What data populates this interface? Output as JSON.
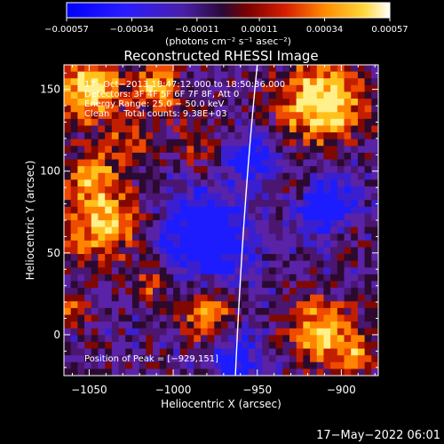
{
  "chart_data": {
    "type": "heatmap",
    "title": "Reconstructed RHESSI Image",
    "xlabel": "Heliocentric X (arcsec)",
    "ylabel": "Heliocentric Y (arcsec)",
    "xlim": [
      -1065,
      -878
    ],
    "ylim": [
      -25,
      165
    ],
    "xticks": [
      -1050,
      -1000,
      -950,
      -900
    ],
    "xtick_labels": [
      "−1050",
      "−1000",
      "−950",
      "−900"
    ],
    "yticks": [
      0,
      50,
      100,
      150
    ],
    "ytick_labels": [
      "0",
      "50",
      "100",
      "150"
    ],
    "colorbar": {
      "range": [
        -0.00057,
        0.00057
      ],
      "ticks": [
        -0.00057,
        -0.00034,
        -0.00011,
        0.00011,
        0.00034,
        0.00057
      ],
      "tick_labels": [
        "−0.00057",
        "−0.00034",
        "−0.00011",
        "0.00011",
        "0.00034",
        "0.00057"
      ],
      "units_label": "(photons cm⁻² s⁻¹ asec⁻²)"
    },
    "info_lines": [
      "17−Oct−2013 18:47:12.000 to 18:50:36.000",
      "Detectors: 3F 4F 5F 6F 7F 8F, Att 0",
      "Energy Range: 25.0 − 50.0 keV",
      "Clean     Total counts: 9.38E+03"
    ],
    "peak_label": "Position of Peak = [−929,151]",
    "limb": {
      "x_at_bottom": -963,
      "x_at_top": -950
    }
  },
  "timestamp": "17−May−2022 06:01"
}
